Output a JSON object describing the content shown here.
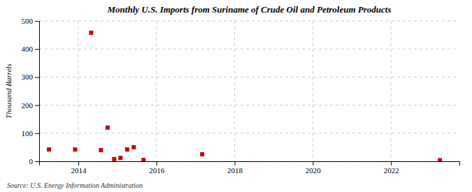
{
  "chart_data": {
    "type": "scatter",
    "title": "Monthly U.S. Imports from Suriname of Crude Oil and Petroleum Products",
    "ylabel": "Thousand Barrels",
    "annotations": [
      "Source: U.S. Energy Information Administration"
    ],
    "x": [
      2013.25,
      2013.92,
      2014.33,
      2014.58,
      2014.75,
      2014.92,
      2015.08,
      2015.25,
      2015.42,
      2015.67,
      2017.17,
      2023.25
    ],
    "values": [
      42,
      42,
      458,
      40,
      120,
      8,
      12,
      42,
      50,
      5,
      25,
      4
    ],
    "color": "#cc0000",
    "marker": "square",
    "xlim": [
      2013.0,
      2023.75
    ],
    "ylim": [
      0,
      500
    ],
    "xticks": [
      2014,
      2016,
      2018,
      2020,
      2022
    ],
    "yticks": [
      0,
      100,
      200,
      300,
      400,
      500
    ],
    "grid": true
  }
}
